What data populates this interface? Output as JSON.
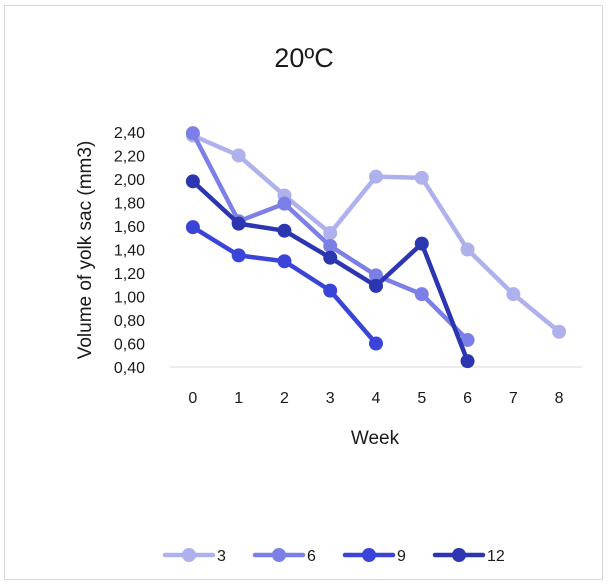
{
  "chart_data": {
    "type": "line",
    "title": "20ºC",
    "xlabel": "Week",
    "ylabel": "Volume of yolk sac (mm3)",
    "x": [
      0,
      1,
      2,
      3,
      4,
      5,
      6,
      7,
      8
    ],
    "x_tick_labels": [
      "0",
      "1",
      "2",
      "3",
      "4",
      "5",
      "6",
      "7",
      "8"
    ],
    "ylim": [
      0.4,
      2.4
    ],
    "y_ticks": [
      0.4,
      0.6,
      0.8,
      1.0,
      1.2,
      1.4,
      1.6,
      1.8,
      2.0,
      2.2,
      2.4
    ],
    "y_tick_labels": [
      "0,40",
      "0,60",
      "0,80",
      "1,00",
      "1,20",
      "1,40",
      "1,60",
      "1,80",
      "2,00",
      "2,20",
      "2,40"
    ],
    "grid": false,
    "legend_position": "bottom",
    "series": [
      {
        "name": "3",
        "color": "#aeb1ec",
        "values": [
          2.37,
          2.2,
          1.86,
          1.54,
          2.02,
          2.01,
          1.4,
          1.02,
          0.7
        ]
      },
      {
        "name": "6",
        "color": "#7c80e6",
        "values": [
          2.39,
          1.64,
          1.79,
          1.43,
          1.18,
          1.02,
          0.63,
          null,
          null
        ]
      },
      {
        "name": "9",
        "color": "#3a44d8",
        "values": [
          1.59,
          1.35,
          1.3,
          1.05,
          0.6,
          null,
          null,
          null,
          null
        ]
      },
      {
        "name": "12",
        "color": "#2b36b0",
        "values": [
          1.98,
          1.62,
          1.56,
          1.33,
          1.09,
          1.45,
          0.45,
          null,
          null
        ]
      }
    ]
  }
}
